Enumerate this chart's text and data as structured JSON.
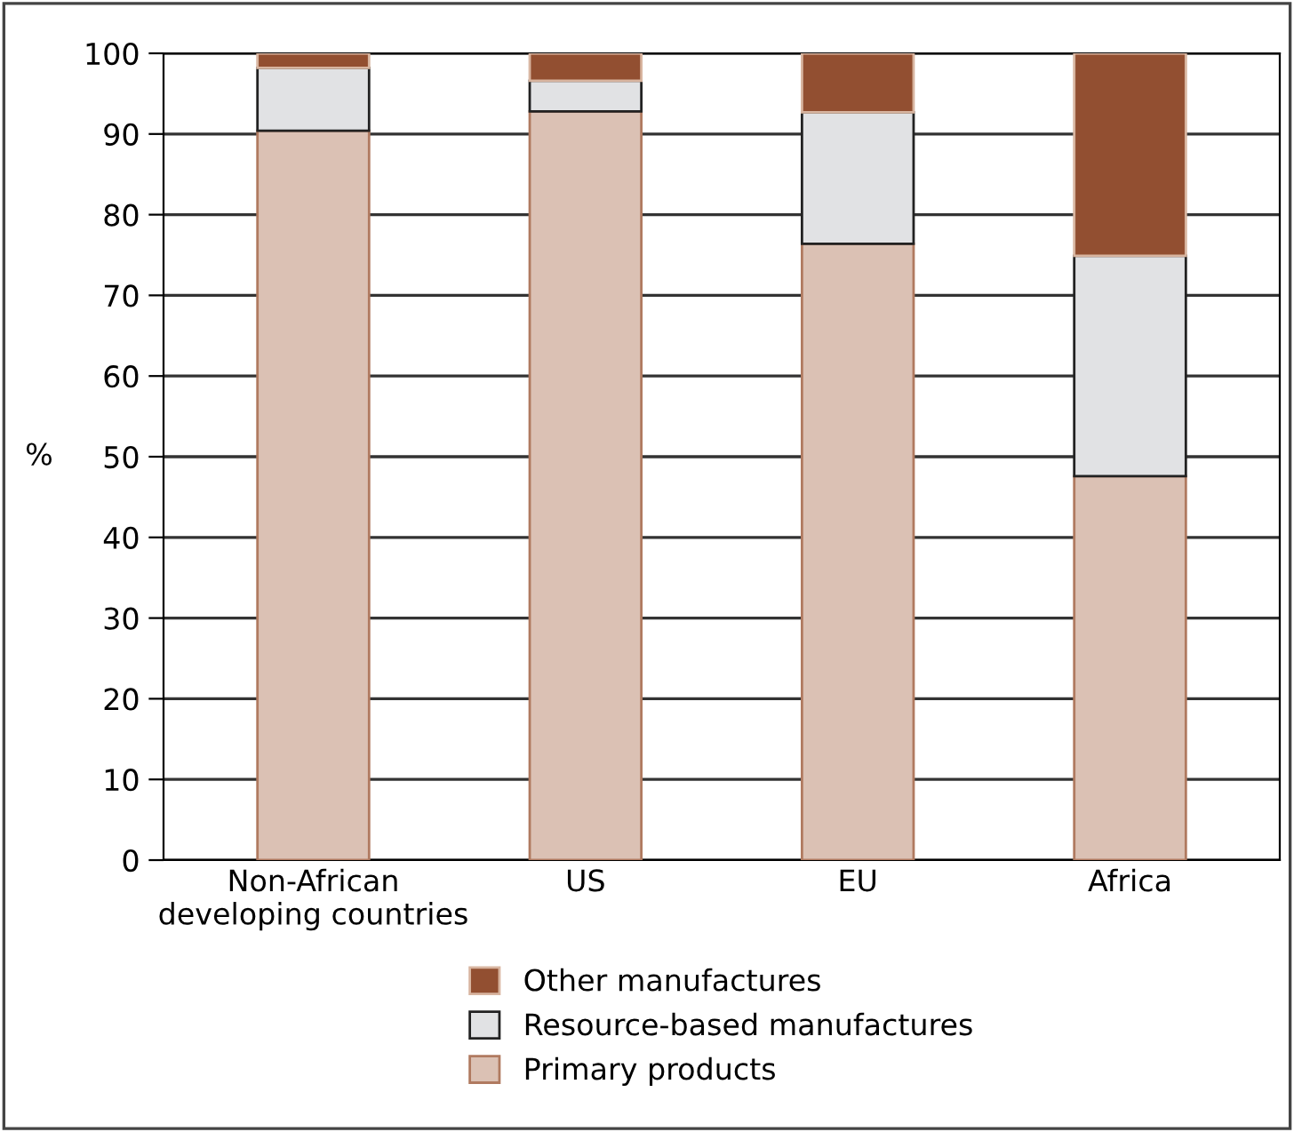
{
  "chart_data": {
    "type": "bar",
    "stacked": true,
    "ylabel": "%",
    "categories": [
      "Non-African\ndeveloping countries",
      "US",
      "EU",
      "Africa"
    ],
    "series": [
      {
        "name": "Primary products",
        "color": "#dbc1b4",
        "values": [
          90.4,
          92.8,
          76.4,
          47.6
        ]
      },
      {
        "name": "Resource-based manufactures",
        "color": "#e1e2e4",
        "values": [
          7.8,
          3.8,
          16.3,
          27.3
        ]
      },
      {
        "name": "Other manufactures",
        "color": "#924f31",
        "values": [
          1.8,
          3.4,
          7.3,
          25.1
        ]
      }
    ],
    "ylim": [
      0,
      100
    ],
    "yticks": [
      0,
      10,
      20,
      30,
      40,
      50,
      60,
      70,
      80,
      90,
      100
    ],
    "grid": "y",
    "legend": "bottom"
  }
}
